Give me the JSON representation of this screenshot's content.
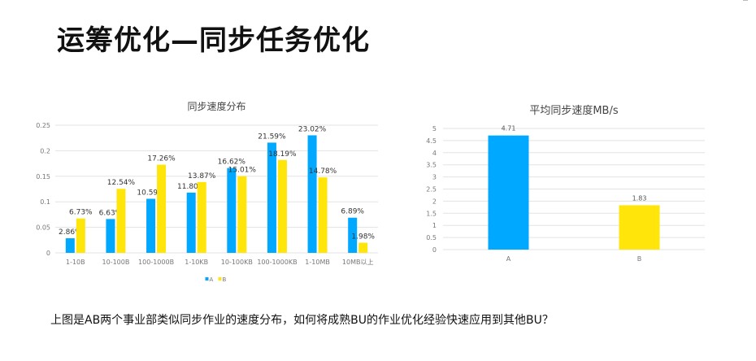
{
  "slide": {
    "title": "运筹优化—同步任务优化",
    "caption": "上图是AB两个事业部类似同步作业的速度分布，如何将成熟BU的作业优化经验快速应用到其他BU？"
  },
  "colors": {
    "A": "#00a8ff",
    "B": "#ffe50a",
    "grid": "#e3e3e3",
    "axis_text": "#777777"
  },
  "chart_data": [
    {
      "type": "bar",
      "title": "同步速度分布",
      "categories": [
        "1-10B",
        "10-100B",
        "100-1000B",
        "1-10KB",
        "10-100KB",
        "100-1000KB",
        "1-10MB",
        "10MB以上"
      ],
      "series": [
        {
          "name": "A",
          "values": [
            0.0286,
            0.0663,
            0.1059,
            0.118,
            0.1662,
            0.2159,
            0.2302,
            0.0689
          ],
          "labels": [
            "2.86%",
            "6.63%",
            "10.59%",
            "11.80%",
            "16.62%",
            "21.59%",
            "23.02%",
            "6.89%"
          ]
        },
        {
          "name": "B",
          "values": [
            0.0673,
            0.1254,
            0.1726,
            0.1387,
            0.1501,
            0.1819,
            0.1478,
            0.0198
          ],
          "labels": [
            "6.73%",
            "12.54%",
            "17.26%",
            "13.87%",
            "15.01%",
            "18.19%",
            "14.78%",
            "1.98%"
          ]
        }
      ],
      "yticks": [
        "0",
        "0.05",
        "0.1",
        "0.15",
        "0.2",
        "0.25"
      ],
      "ylim": [
        0,
        0.25
      ],
      "grid": true,
      "legend": "bottom",
      "legend_labels": [
        "A",
        "B"
      ]
    },
    {
      "type": "bar",
      "title": "平均同步速度MB/s",
      "categories": [
        "A",
        "B"
      ],
      "values": [
        4.71,
        1.83
      ],
      "labels": [
        "4.71",
        "1.83"
      ],
      "yticks": [
        "0",
        "0.5",
        "1",
        "1.5",
        "2",
        "2.5",
        "3",
        "3.5",
        "4",
        "4.5",
        "5"
      ],
      "ylim": [
        0,
        5
      ],
      "grid": true
    }
  ]
}
